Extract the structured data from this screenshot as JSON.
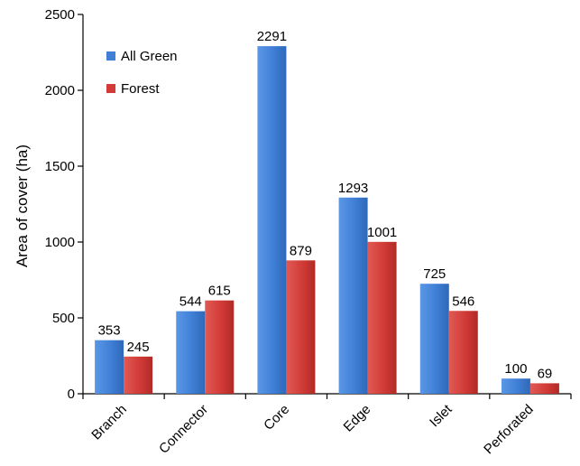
{
  "chart_data": {
    "type": "bar",
    "title": "",
    "xlabel": "",
    "ylabel": "Area of cover (ha)",
    "ylim": [
      0,
      2500
    ],
    "yticks": [
      0,
      500,
      1000,
      1500,
      2000,
      2500
    ],
    "grid": false,
    "legend_position": "top-left",
    "categories": [
      "Branch",
      "Connector",
      "Core",
      "Edge",
      "Islet",
      "Perforated"
    ],
    "series": [
      {
        "name": "All Green",
        "color": "#3f7fd6",
        "values": [
          353,
          544,
          2291,
          1293,
          725,
          100
        ]
      },
      {
        "name": "Forest",
        "color": "#d23b37",
        "values": [
          245,
          615,
          879,
          1001,
          546,
          69
        ]
      }
    ]
  }
}
